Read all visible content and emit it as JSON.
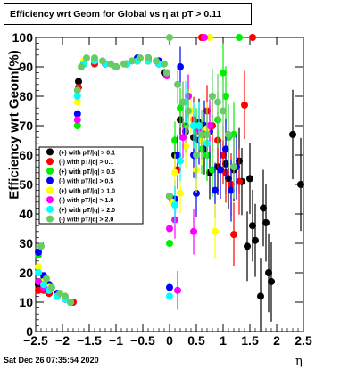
{
  "footer": {
    "timestamp": "Sat Dec 26 07:35:54 2020"
  },
  "chart_data": {
    "type": "scatter",
    "title": "Efficiency wrt Geom for Global vs η at pT > 0.11",
    "xlabel": "η",
    "ylabel": "Efficiency wrt Geom(%)",
    "xlim": [
      -2.5,
      2.5
    ],
    "ylim": [
      0,
      100
    ],
    "x_ticks": [
      -2.5,
      -2,
      -1.5,
      -1,
      -0.5,
      0,
      0.5,
      1,
      1.5,
      2,
      2.5
    ],
    "x_tick_labels": [
      "−2.5",
      "−2",
      "−1.5",
      "−1",
      "−0.5",
      "0",
      "0.5",
      "1",
      "1.5",
      "2",
      "2.5"
    ],
    "y_ticks": [
      0,
      10,
      20,
      30,
      40,
      50,
      60,
      70,
      80,
      90,
      100
    ],
    "legend_position": "left-middle",
    "series": [
      {
        "name": "(+) with pT/|q| > 0.1",
        "color": "#000000",
        "points": [
          [
            -2.45,
            16
          ],
          [
            -2.35,
            15
          ],
          [
            -2.25,
            13
          ],
          [
            -2.1,
            12
          ],
          [
            -1.95,
            11
          ],
          [
            -1.85,
            10
          ],
          [
            -1.75,
            60
          ],
          [
            -1.7,
            85
          ],
          [
            -1.6,
            91
          ],
          [
            -1.4,
            92
          ],
          [
            -1.2,
            91
          ],
          [
            -1.0,
            90
          ],
          [
            -0.8,
            91
          ],
          [
            -0.6,
            92
          ],
          [
            -0.4,
            92
          ],
          [
            -0.2,
            91
          ],
          [
            -0.1,
            88
          ],
          [
            0.0,
            46
          ],
          [
            0.1,
            60
          ],
          [
            0.2,
            72
          ],
          [
            0.3,
            68
          ],
          [
            0.45,
            66
          ],
          [
            0.55,
            71
          ],
          [
            0.65,
            62
          ],
          [
            0.75,
            54
          ],
          [
            0.9,
            56
          ],
          [
            1.05,
            57
          ],
          [
            1.1,
            52
          ],
          [
            1.2,
            55
          ],
          [
            1.3,
            58
          ],
          [
            1.35,
            51
          ],
          [
            1.45,
            29
          ],
          [
            1.5,
            52
          ],
          [
            1.55,
            36
          ],
          [
            1.6,
            31
          ],
          [
            1.7,
            12
          ],
          [
            1.75,
            42
          ],
          [
            1.8,
            37
          ],
          [
            1.85,
            20
          ],
          [
            1.9,
            17
          ],
          [
            2.3,
            67
          ],
          [
            2.45,
            50
          ]
        ]
      },
      {
        "name": "(-) with pT/|q| > 0.1",
        "color": "#ff0000",
        "points": [
          [
            -2.45,
            14
          ],
          [
            -2.35,
            14
          ],
          [
            -2.25,
            13
          ],
          [
            -2.1,
            12
          ],
          [
            -1.95,
            11
          ],
          [
            -1.8,
            10
          ],
          [
            -1.7,
            83
          ],
          [
            -1.6,
            91
          ],
          [
            -1.4,
            91
          ],
          [
            -1.2,
            91
          ],
          [
            -1.0,
            90
          ],
          [
            -0.8,
            91
          ],
          [
            -0.6,
            92
          ],
          [
            -0.4,
            92
          ],
          [
            -0.2,
            91
          ],
          [
            -0.05,
            87
          ],
          [
            0.05,
            45
          ],
          [
            0.15,
            55
          ],
          [
            0.25,
            78
          ],
          [
            0.35,
            80
          ],
          [
            0.45,
            72
          ],
          [
            0.6,
            100
          ],
          [
            0.7,
            75
          ],
          [
            0.8,
            70
          ],
          [
            0.9,
            65
          ],
          [
            1.0,
            60
          ],
          [
            1.05,
            54
          ],
          [
            1.15,
            50
          ],
          [
            1.2,
            33
          ],
          [
            1.3,
            51
          ],
          [
            1.4,
            77
          ],
          [
            1.55,
            100
          ]
        ]
      },
      {
        "name": "(+) with pT/|q| > 0.5",
        "color": "#00ee00",
        "points": [
          [
            -2.45,
            26
          ],
          [
            -2.35,
            18
          ],
          [
            -2.25,
            16
          ],
          [
            -2.1,
            12
          ],
          [
            -1.95,
            11
          ],
          [
            -1.85,
            10
          ],
          [
            -1.72,
            70
          ],
          [
            -1.6,
            91
          ],
          [
            -1.4,
            92
          ],
          [
            -1.2,
            91
          ],
          [
            -1.0,
            90
          ],
          [
            -0.8,
            91
          ],
          [
            -0.6,
            92
          ],
          [
            -0.4,
            93
          ],
          [
            -0.2,
            92
          ],
          [
            -0.05,
            88
          ],
          [
            0.0,
            30
          ],
          [
            0.1,
            65
          ],
          [
            0.2,
            76
          ],
          [
            0.3,
            70
          ],
          [
            0.5,
            68
          ],
          [
            0.6,
            62
          ],
          [
            0.7,
            60
          ],
          [
            0.8,
            55
          ],
          [
            0.9,
            72
          ],
          [
            1.0,
            88
          ],
          [
            1.05,
            80
          ],
          [
            1.1,
            66
          ],
          [
            1.2,
            67
          ],
          [
            1.3,
            100
          ]
        ]
      },
      {
        "name": "(-) with pT/|q| > 0.5",
        "color": "#0000ff",
        "points": [
          [
            -2.45,
            27
          ],
          [
            -2.35,
            19
          ],
          [
            -2.25,
            16
          ],
          [
            -2.1,
            13
          ],
          [
            -1.95,
            11
          ],
          [
            -1.85,
            10
          ],
          [
            -1.72,
            74
          ],
          [
            -1.6,
            91
          ],
          [
            -1.4,
            92
          ],
          [
            -1.2,
            91
          ],
          [
            -1.0,
            90
          ],
          [
            -0.8,
            91
          ],
          [
            -0.6,
            93
          ],
          [
            -0.4,
            93
          ],
          [
            -0.2,
            92
          ],
          [
            -0.05,
            88
          ],
          [
            0.0,
            15
          ],
          [
            0.1,
            45
          ],
          [
            0.15,
            60
          ],
          [
            0.2,
            90
          ],
          [
            0.3,
            68
          ],
          [
            0.45,
            60
          ],
          [
            0.5,
            47
          ],
          [
            0.55,
            65
          ],
          [
            0.65,
            70
          ],
          [
            0.75,
            68
          ],
          [
            0.85,
            48
          ],
          [
            0.95,
            55
          ],
          [
            1.05,
            62
          ],
          [
            1.15,
            48
          ],
          [
            1.25,
            56
          ]
        ]
      },
      {
        "name": "(+) with pT/|q| > 1.0",
        "color": "#ffff00",
        "points": [
          [
            -2.45,
            22
          ],
          [
            -2.35,
            17
          ],
          [
            -2.25,
            15
          ],
          [
            -2.1,
            12
          ],
          [
            -1.95,
            11
          ],
          [
            -1.85,
            10
          ],
          [
            -1.72,
            78
          ],
          [
            -1.6,
            92
          ],
          [
            -1.4,
            92
          ],
          [
            -1.2,
            91
          ],
          [
            -1.0,
            90
          ],
          [
            -0.8,
            91
          ],
          [
            -0.6,
            92
          ],
          [
            -0.4,
            92
          ],
          [
            -0.2,
            91
          ],
          [
            -0.05,
            88
          ],
          [
            0.05,
            44
          ],
          [
            0.1,
            54
          ],
          [
            0.2,
            47
          ],
          [
            0.3,
            63
          ],
          [
            0.4,
            75
          ],
          [
            0.5,
            55
          ],
          [
            0.6,
            65
          ],
          [
            0.7,
            69
          ],
          [
            0.75,
            100
          ],
          [
            0.85,
            34
          ]
        ]
      },
      {
        "name": "(-) with pT/|q| > 1.0",
        "color": "#ff00ff",
        "points": [
          [
            -2.45,
            17
          ],
          [
            -2.35,
            15
          ],
          [
            -2.25,
            14
          ],
          [
            -2.1,
            12
          ],
          [
            -1.95,
            11
          ],
          [
            -1.85,
            10
          ],
          [
            -1.72,
            72
          ],
          [
            -1.6,
            91
          ],
          [
            -1.4,
            92
          ],
          [
            -1.2,
            91
          ],
          [
            -1.0,
            90
          ],
          [
            -0.8,
            91
          ],
          [
            -0.6,
            92
          ],
          [
            -0.4,
            92
          ],
          [
            -0.2,
            91
          ],
          [
            -0.05,
            87
          ],
          [
            0.0,
            35
          ],
          [
            0.1,
            38
          ],
          [
            0.15,
            14
          ],
          [
            0.25,
            66
          ],
          [
            0.35,
            80
          ],
          [
            0.45,
            34
          ],
          [
            0.55,
            68
          ],
          [
            0.65,
            100
          ],
          [
            0.75,
            70
          ]
        ]
      },
      {
        "name": "(+) with pT/|q| > 2.0",
        "color": "#00ffff",
        "points": [
          [
            -2.45,
            20
          ],
          [
            -2.35,
            16
          ],
          [
            -2.25,
            14
          ],
          [
            -2.1,
            12
          ],
          [
            -1.95,
            11
          ],
          [
            -1.85,
            10
          ],
          [
            -1.72,
            80
          ],
          [
            -1.6,
            91
          ],
          [
            -1.4,
            92
          ],
          [
            -1.2,
            91
          ],
          [
            -1.0,
            90
          ],
          [
            -0.8,
            91
          ],
          [
            -0.6,
            92
          ],
          [
            -0.4,
            92
          ],
          [
            -0.2,
            91
          ],
          [
            -0.05,
            88
          ],
          [
            0.0,
            12
          ],
          [
            0.1,
            43
          ],
          [
            0.2,
            58
          ],
          [
            0.3,
            78
          ],
          [
            0.45,
            70
          ],
          [
            0.55,
            70
          ],
          [
            0.7,
            64
          ]
        ]
      },
      {
        "name": "(-) with pT/|q| > 2.0",
        "color": "#66cc66",
        "points": [
          [
            -2.4,
            29
          ],
          [
            -2.3,
            18
          ],
          [
            -2.2,
            15
          ],
          [
            -2.05,
            13
          ],
          [
            -1.95,
            12
          ],
          [
            -1.85,
            10
          ],
          [
            -1.72,
            82
          ],
          [
            -1.65,
            90
          ],
          [
            -1.55,
            93
          ],
          [
            -1.4,
            93
          ],
          [
            -1.25,
            92
          ],
          [
            -1.1,
            91
          ],
          [
            -1.0,
            90
          ],
          [
            -0.85,
            91
          ],
          [
            -0.7,
            92
          ],
          [
            -0.55,
            93
          ],
          [
            -0.4,
            93
          ],
          [
            -0.25,
            92
          ],
          [
            -0.1,
            91
          ],
          [
            -0.05,
            88
          ],
          [
            0.0,
            46
          ],
          [
            0.0,
            100
          ],
          [
            0.15,
            84
          ],
          [
            0.25,
            78
          ],
          [
            0.35,
            75
          ],
          [
            0.5,
            60
          ],
          [
            0.6,
            67
          ],
          [
            0.7,
            67
          ],
          [
            0.8,
            80
          ],
          [
            0.9,
            78
          ],
          [
            1.0,
            75
          ],
          [
            1.1,
            67
          ],
          [
            1.2,
            56
          ]
        ]
      }
    ]
  }
}
